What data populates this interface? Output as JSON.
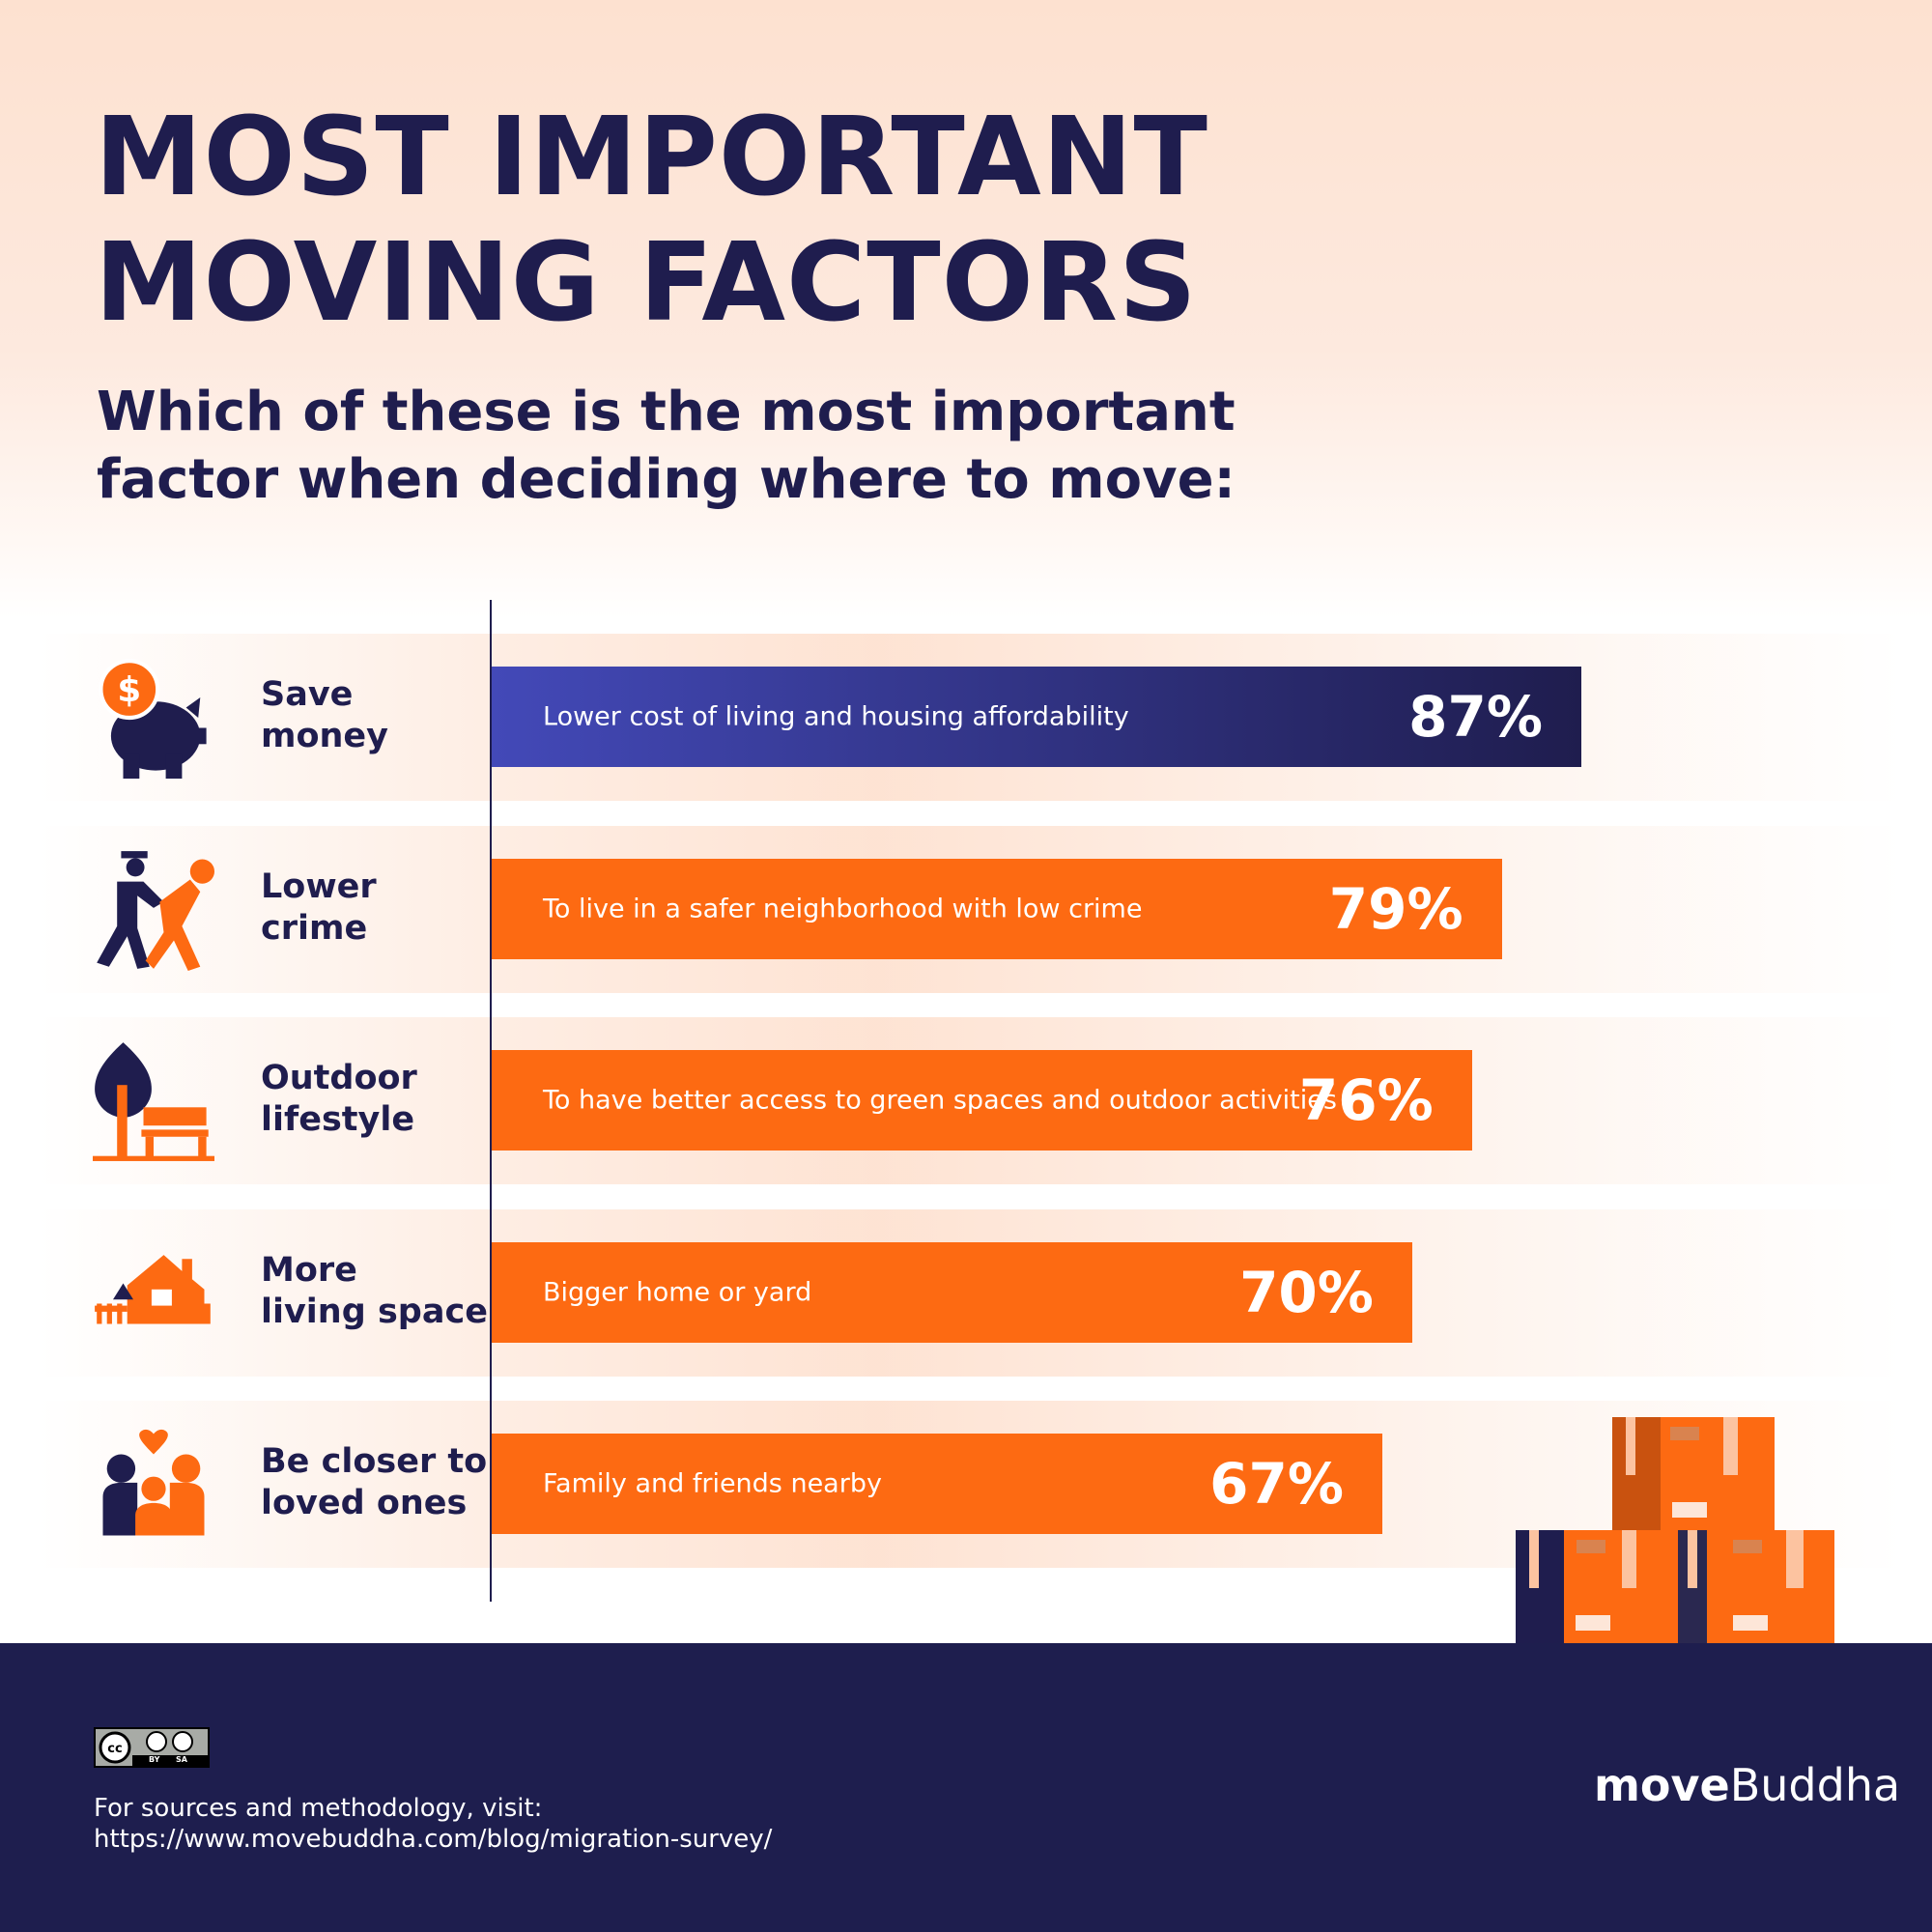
{
  "title_lines": [
    "MOST IMPORTANT",
    "MOVING FACTORS"
  ],
  "subtitle_lines": [
    "Which of these is the most important",
    "factor when deciding where to move:"
  ],
  "chart_data": {
    "type": "bar",
    "orientation": "horizontal",
    "title": "Most important moving factors",
    "categories": [
      "Save money",
      "Lower crime",
      "Outdoor lifestyle",
      "More living space",
      "Be closer to loved ones"
    ],
    "category_lines": [
      [
        "Save",
        "money"
      ],
      [
        "Lower",
        "crime"
      ],
      [
        "Outdoor",
        "lifestyle"
      ],
      [
        "More",
        "living space"
      ],
      [
        "Be closer to",
        "loved ones"
      ]
    ],
    "bar_labels": [
      "Lower cost of living and housing affordability",
      "To live in a safer neighborhood with low crime",
      "To have better access to green spaces and outdoor activities",
      "Bigger home or yard",
      "Family and friends nearby"
    ],
    "values": [
      87,
      79,
      76,
      70,
      67
    ],
    "value_labels": [
      "87%",
      "79%",
      "76%",
      "70%",
      "67%"
    ],
    "unit": "%",
    "icons": [
      "piggy-bank-icon",
      "police-arrest-icon",
      "tree-bench-icon",
      "house-icon",
      "family-heart-icon"
    ],
    "colors": {
      "highlight_start": "#4349b8",
      "highlight_end": "#1f1d4e",
      "default": "#fd6a12"
    }
  },
  "footer": {
    "license_badge": [
      "BY",
      "SA"
    ],
    "source_lines": [
      "For sources and methodology, visit:",
      "https://www.movebuddha.com/blog/migration-survey/"
    ],
    "logo_bold": "move",
    "logo_light": "Buddha"
  }
}
